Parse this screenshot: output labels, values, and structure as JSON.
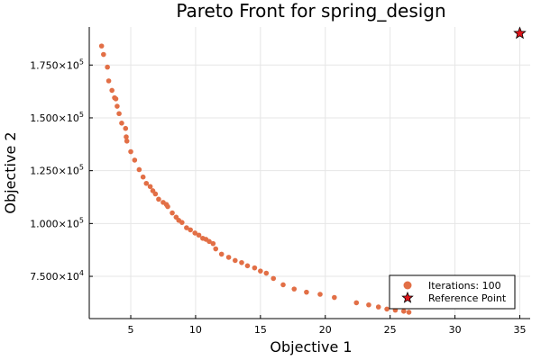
{
  "chart_data": {
    "type": "scatter",
    "title": "Pareto Front for spring_design",
    "xlabel": "Objective 1",
    "ylabel": "Objective 2",
    "xlim": [
      1.8,
      35.8
    ],
    "ylim": [
      55000,
      193000
    ],
    "grid": true,
    "legend_position": "bottom-right",
    "x_ticks": [
      {
        "value": 5,
        "label": "5"
      },
      {
        "value": 10,
        "label": "10"
      },
      {
        "value": 15,
        "label": "15"
      },
      {
        "value": 20,
        "label": "20"
      },
      {
        "value": 25,
        "label": "25"
      },
      {
        "value": 30,
        "label": "30"
      },
      {
        "value": 35,
        "label": "35"
      }
    ],
    "y_ticks": [
      {
        "value": 75000,
        "mantissa": "7.500",
        "exponent": "4"
      },
      {
        "value": 100000,
        "mantissa": "1.000",
        "exponent": "5"
      },
      {
        "value": 125000,
        "mantissa": "1.250",
        "exponent": "5"
      },
      {
        "value": 150000,
        "mantissa": "1.500",
        "exponent": "5"
      },
      {
        "value": 175000,
        "mantissa": "1.750",
        "exponent": "5"
      }
    ],
    "series": [
      {
        "name": "Iterations: 100",
        "color": "#e26f46",
        "marker": "circle",
        "points": [
          [
            2.75,
            184000
          ],
          [
            2.9,
            180000
          ],
          [
            3.2,
            174000
          ],
          [
            3.3,
            167500
          ],
          [
            3.55,
            163000
          ],
          [
            3.75,
            159500
          ],
          [
            3.85,
            159000
          ],
          [
            3.95,
            155500
          ],
          [
            4.1,
            152000
          ],
          [
            4.3,
            147500
          ],
          [
            4.6,
            145000
          ],
          [
            4.65,
            141000
          ],
          [
            4.7,
            139000
          ],
          [
            5.0,
            134000
          ],
          [
            5.3,
            130000
          ],
          [
            5.65,
            125500
          ],
          [
            5.95,
            122000
          ],
          [
            6.2,
            119000
          ],
          [
            6.5,
            117500
          ],
          [
            6.7,
            115500
          ],
          [
            6.9,
            114000
          ],
          [
            7.15,
            111500
          ],
          [
            7.5,
            110000
          ],
          [
            7.75,
            109000
          ],
          [
            7.85,
            108000
          ],
          [
            8.2,
            105000
          ],
          [
            8.5,
            103000
          ],
          [
            8.7,
            101500
          ],
          [
            8.95,
            100500
          ],
          [
            9.3,
            98000
          ],
          [
            9.6,
            97000
          ],
          [
            9.95,
            95500
          ],
          [
            10.25,
            94500
          ],
          [
            10.55,
            93000
          ],
          [
            10.8,
            92500
          ],
          [
            11.05,
            91500
          ],
          [
            11.35,
            90500
          ],
          [
            11.55,
            88000
          ],
          [
            12.0,
            85500
          ],
          [
            12.55,
            84000
          ],
          [
            13.05,
            82500
          ],
          [
            13.55,
            81500
          ],
          [
            14.0,
            80000
          ],
          [
            14.55,
            79000
          ],
          [
            15.0,
            77500
          ],
          [
            15.45,
            76500
          ],
          [
            16.0,
            74000
          ],
          [
            16.75,
            71000
          ],
          [
            17.6,
            69000
          ],
          [
            18.55,
            67500
          ],
          [
            19.6,
            66500
          ],
          [
            20.7,
            65000
          ],
          [
            22.4,
            62500
          ],
          [
            23.35,
            61500
          ],
          [
            24.1,
            60500
          ],
          [
            24.75,
            59500
          ],
          [
            25.4,
            59000
          ],
          [
            26.05,
            58500
          ],
          [
            26.45,
            58000
          ]
        ]
      },
      {
        "name": "Reference Point",
        "color": "#e0131a",
        "marker": "star",
        "points": [
          [
            35,
            190000
          ]
        ]
      }
    ]
  }
}
